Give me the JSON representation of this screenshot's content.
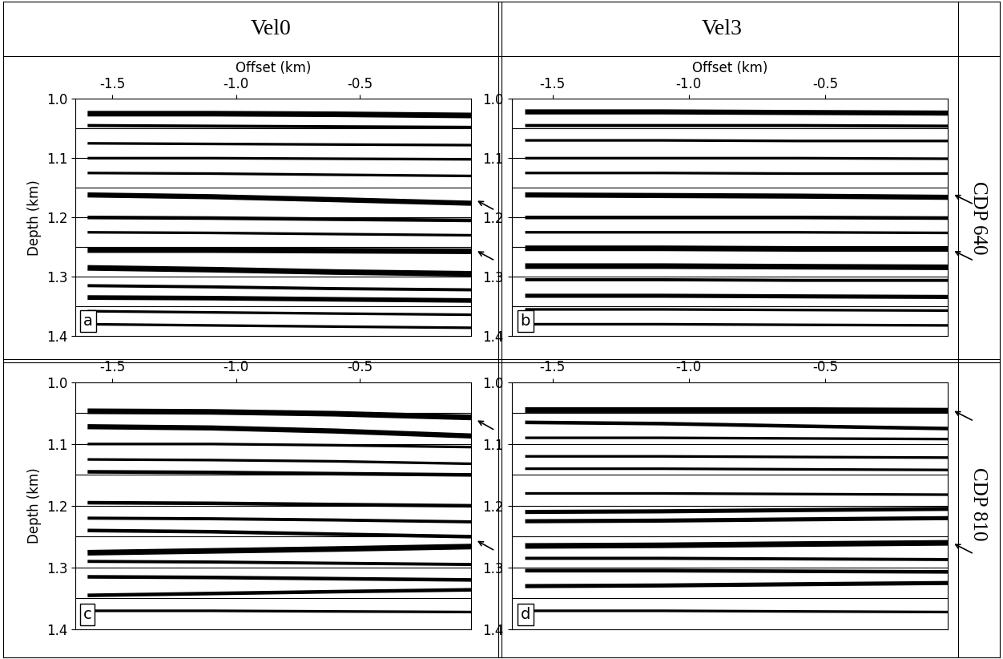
{
  "columns": [
    "Vel0",
    "Vel3"
  ],
  "rows": [
    "CDP 640",
    "CDP 810"
  ],
  "chart_data": [
    {
      "type": "line",
      "label": "a",
      "xlabel": "Offset (km)",
      "ylabel": "Depth (km)",
      "xlim": [
        -1.65,
        -0.05
      ],
      "xticks": [
        -1.5,
        -1.0,
        -0.5
      ],
      "ylim": [
        1.4,
        1.0
      ],
      "yticks": [
        1.0,
        1.1,
        1.2,
        1.3,
        1.4
      ],
      "depth_lines": [
        1.05,
        1.1,
        1.15,
        1.2,
        1.25,
        1.3,
        1.35
      ],
      "arrow_depths": [
        1.17,
        1.255
      ],
      "x": [
        -1.6,
        -1.1,
        -0.6,
        -0.05
      ],
      "series": [
        {
          "amplitude": 0.9,
          "values": [
            1.025,
            1.025,
            1.026,
            1.028
          ]
        },
        {
          "amplitude": 0.4,
          "values": [
            1.045,
            1.046,
            1.047,
            1.048
          ]
        },
        {
          "amplitude": 0.3,
          "values": [
            1.075,
            1.076,
            1.077,
            1.078
          ]
        },
        {
          "amplitude": 0.3,
          "values": [
            1.1,
            1.1,
            1.101,
            1.102
          ]
        },
        {
          "amplitude": 0.3,
          "values": [
            1.125,
            1.126,
            1.128,
            1.13
          ]
        },
        {
          "amplitude": 0.8,
          "values": [
            1.162,
            1.165,
            1.17,
            1.176
          ]
        },
        {
          "amplitude": 0.5,
          "values": [
            1.2,
            1.201,
            1.203,
            1.205
          ]
        },
        {
          "amplitude": 0.3,
          "values": [
            1.225,
            1.226,
            1.228,
            1.23
          ]
        },
        {
          "amplitude": 0.9,
          "values": [
            1.255,
            1.255,
            1.256,
            1.257
          ]
        },
        {
          "amplitude": 0.9,
          "values": [
            1.285,
            1.288,
            1.292,
            1.295
          ]
        },
        {
          "amplitude": 0.4,
          "values": [
            1.315,
            1.317,
            1.32,
            1.322
          ]
        },
        {
          "amplitude": 0.7,
          "values": [
            1.335,
            1.336,
            1.338,
            1.34
          ]
        },
        {
          "amplitude": 0.3,
          "values": [
            1.358,
            1.36,
            1.362,
            1.364
          ]
        },
        {
          "amplitude": 0.3,
          "values": [
            1.38,
            1.382,
            1.384,
            1.386
          ]
        }
      ]
    },
    {
      "type": "line",
      "label": "b",
      "xlabel": "Offset (km)",
      "xlim": [
        -1.65,
        -0.05
      ],
      "xticks": [
        -1.5,
        -1.0,
        -0.5
      ],
      "ylim": [
        1.4,
        1.0
      ],
      "yticks": [
        1.0,
        1.1,
        1.2,
        1.3,
        1.4
      ],
      "depth_lines": [
        1.05,
        1.1,
        1.15,
        1.2,
        1.25,
        1.3,
        1.35
      ],
      "arrow_depths": [
        1.16,
        1.255
      ],
      "x": [
        -1.6,
        -1.1,
        -0.6,
        -0.05
      ],
      "series": [
        {
          "amplitude": 0.8,
          "values": [
            1.022,
            1.022,
            1.023,
            1.024
          ]
        },
        {
          "amplitude": 0.4,
          "values": [
            1.045,
            1.045,
            1.045,
            1.046
          ]
        },
        {
          "amplitude": 0.3,
          "values": [
            1.07,
            1.07,
            1.071,
            1.071
          ]
        },
        {
          "amplitude": 0.3,
          "values": [
            1.1,
            1.1,
            1.1,
            1.101
          ]
        },
        {
          "amplitude": 0.3,
          "values": [
            1.125,
            1.125,
            1.126,
            1.126
          ]
        },
        {
          "amplitude": 0.8,
          "values": [
            1.162,
            1.163,
            1.164,
            1.166
          ]
        },
        {
          "amplitude": 0.5,
          "values": [
            1.2,
            1.2,
            1.2,
            1.201
          ]
        },
        {
          "amplitude": 0.3,
          "values": [
            1.225,
            1.225,
            1.225,
            1.226
          ]
        },
        {
          "amplitude": 0.9,
          "values": [
            1.252,
            1.252,
            1.253,
            1.253
          ]
        },
        {
          "amplitude": 0.9,
          "values": [
            1.282,
            1.282,
            1.283,
            1.284
          ]
        },
        {
          "amplitude": 0.4,
          "values": [
            1.305,
            1.305,
            1.306,
            1.306
          ]
        },
        {
          "amplitude": 0.6,
          "values": [
            1.332,
            1.332,
            1.333,
            1.334
          ]
        },
        {
          "amplitude": 0.3,
          "values": [
            1.355,
            1.355,
            1.356,
            1.357
          ]
        },
        {
          "amplitude": 0.3,
          "values": [
            1.38,
            1.38,
            1.381,
            1.382
          ]
        }
      ]
    },
    {
      "type": "line",
      "label": "c",
      "ylabel": "Depth (km)",
      "xlim": [
        -1.65,
        -0.05
      ],
      "xticks": [
        -1.5,
        -1.0,
        -0.5
      ],
      "ylim": [
        1.4,
        1.0
      ],
      "yticks": [
        1.0,
        1.1,
        1.2,
        1.3,
        1.4
      ],
      "depth_lines": [
        1.05,
        1.1,
        1.15,
        1.2,
        1.25,
        1.3,
        1.35
      ],
      "arrow_depths": [
        1.06,
        1.255
      ],
      "x": [
        -1.6,
        -1.1,
        -0.6,
        -0.05
      ],
      "series": [
        {
          "amplitude": 0.9,
          "values": [
            1.047,
            1.048,
            1.051,
            1.057
          ]
        },
        {
          "amplitude": 0.8,
          "values": [
            1.072,
            1.074,
            1.079,
            1.087
          ]
        },
        {
          "amplitude": 0.3,
          "values": [
            1.1,
            1.1,
            1.102,
            1.105
          ]
        },
        {
          "amplitude": 0.3,
          "values": [
            1.125,
            1.126,
            1.128,
            1.132
          ]
        },
        {
          "amplitude": 0.5,
          "values": [
            1.145,
            1.146,
            1.148,
            1.15
          ]
        },
        {
          "amplitude": 0.5,
          "values": [
            1.195,
            1.196,
            1.198,
            1.2
          ]
        },
        {
          "amplitude": 0.4,
          "values": [
            1.22,
            1.221,
            1.223,
            1.226
          ]
        },
        {
          "amplitude": 0.5,
          "values": [
            1.24,
            1.242,
            1.246,
            1.25
          ]
        },
        {
          "amplitude": 0.9,
          "values": [
            1.276,
            1.273,
            1.27,
            1.266
          ]
        },
        {
          "amplitude": 0.4,
          "values": [
            1.29,
            1.291,
            1.293,
            1.295
          ]
        },
        {
          "amplitude": 0.5,
          "values": [
            1.315,
            1.316,
            1.318,
            1.32
          ]
        },
        {
          "amplitude": 0.5,
          "values": [
            1.345,
            1.342,
            1.339,
            1.336
          ]
        },
        {
          "amplitude": 0.3,
          "values": [
            1.37,
            1.37,
            1.371,
            1.372
          ]
        }
      ]
    },
    {
      "type": "line",
      "label": "d",
      "xlim": [
        -1.65,
        -0.05
      ],
      "xticks": [
        -1.5,
        -1.0,
        -0.5
      ],
      "ylim": [
        1.4,
        1.0
      ],
      "yticks": [
        1.0,
        1.1,
        1.2,
        1.3,
        1.4
      ],
      "depth_lines": [
        1.05,
        1.1,
        1.15,
        1.2,
        1.25,
        1.3,
        1.35
      ],
      "arrow_depths": [
        1.045,
        1.26
      ],
      "x": [
        -1.6,
        -1.1,
        -0.6,
        -0.05
      ],
      "series": [
        {
          "amplitude": 0.9,
          "values": [
            1.045,
            1.045,
            1.045,
            1.046
          ]
        },
        {
          "amplitude": 0.5,
          "values": [
            1.065,
            1.067,
            1.071,
            1.075
          ]
        },
        {
          "amplitude": 0.3,
          "values": [
            1.09,
            1.09,
            1.091,
            1.092
          ]
        },
        {
          "amplitude": 0.3,
          "values": [
            1.12,
            1.12,
            1.121,
            1.122
          ]
        },
        {
          "amplitude": 0.3,
          "values": [
            1.14,
            1.14,
            1.141,
            1.142
          ]
        },
        {
          "amplitude": 0.3,
          "values": [
            1.18,
            1.18,
            1.181,
            1.182
          ]
        },
        {
          "amplitude": 0.6,
          "values": [
            1.21,
            1.209,
            1.207,
            1.205
          ]
        },
        {
          "amplitude": 0.6,
          "values": [
            1.225,
            1.224,
            1.222,
            1.22
          ]
        },
        {
          "amplitude": 0.9,
          "values": [
            1.265,
            1.264,
            1.262,
            1.26
          ]
        },
        {
          "amplitude": 0.4,
          "values": [
            1.285,
            1.285,
            1.286,
            1.287
          ]
        },
        {
          "amplitude": 0.5,
          "values": [
            1.305,
            1.305,
            1.306,
            1.307
          ]
        },
        {
          "amplitude": 0.6,
          "values": [
            1.33,
            1.329,
            1.327,
            1.325
          ]
        },
        {
          "amplitude": 0.3,
          "values": [
            1.37,
            1.37,
            1.371,
            1.372
          ]
        }
      ]
    }
  ]
}
